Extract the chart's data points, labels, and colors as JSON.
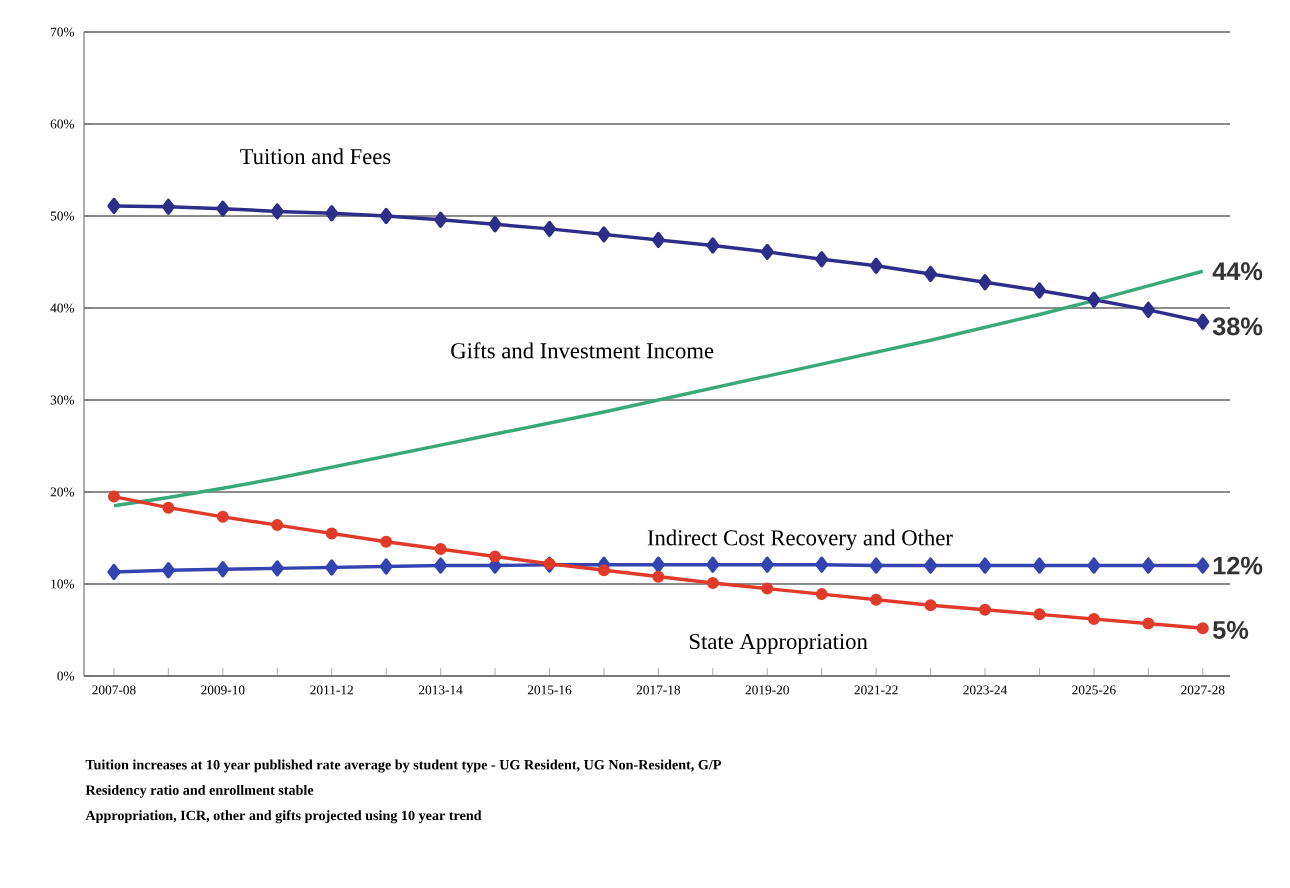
{
  "chart_data": {
    "type": "line",
    "categories": [
      "2007-08",
      null,
      "2009-10",
      null,
      "2011-12",
      null,
      "2013-14",
      null,
      "2015-16",
      null,
      "2017-18",
      null,
      "2019-20",
      null,
      "2021-22",
      null,
      "2023-24",
      null,
      "2025-26",
      null,
      "2027-28"
    ],
    "series": [
      {
        "name": "Tuition and Fees",
        "color": "#2e2e8a",
        "marker": "diamond",
        "values": [
          51.1,
          51.0,
          50.8,
          50.5,
          50.3,
          50.0,
          49.6,
          49.1,
          48.6,
          48.0,
          47.4,
          46.8,
          46.1,
          45.3,
          44.6,
          43.7,
          42.8,
          41.9,
          40.9,
          39.8,
          38.5
        ]
      },
      {
        "name": "Gifts and Investment Income",
        "color": "#3aa97a",
        "marker": "none",
        "values": [
          18.5,
          19.4,
          20.4,
          21.5,
          22.7,
          23.9,
          25.1,
          26.3,
          27.5,
          28.7,
          30.0,
          31.3,
          32.6,
          33.9,
          35.2,
          36.5,
          37.9,
          39.3,
          40.8,
          42.4,
          44.0
        ]
      },
      {
        "name": "Indirect Cost Recovery and Other",
        "color": "#3344b0",
        "marker": "diamond",
        "values": [
          11.3,
          11.5,
          11.6,
          11.7,
          11.8,
          11.9,
          12.0,
          12.0,
          12.1,
          12.1,
          12.1,
          12.1,
          12.1,
          12.1,
          12.0,
          12.0,
          12.0,
          12.0,
          12.0,
          12.0,
          12.0
        ]
      },
      {
        "name": "State Appropriation",
        "color": "#e03a2a",
        "marker": "circle",
        "values": [
          19.5,
          18.3,
          17.3,
          16.4,
          15.5,
          14.6,
          13.8,
          13.0,
          12.2,
          11.5,
          10.8,
          10.1,
          9.5,
          8.9,
          8.3,
          7.7,
          7.2,
          6.7,
          6.2,
          5.7,
          5.2
        ]
      }
    ],
    "ylim": [
      0,
      70
    ],
    "yticks": [
      {
        "value": 0,
        "label": "0%"
      },
      {
        "value": 10,
        "label": "10%"
      },
      {
        "value": 20,
        "label": "20%"
      },
      {
        "value": 30,
        "label": "30%"
      },
      {
        "value": 40,
        "label": "40%"
      },
      {
        "value": 50,
        "label": "50%"
      },
      {
        "value": 60,
        "label": "60%"
      },
      {
        "value": 70,
        "label": "70%"
      }
    ],
    "grid": "y",
    "legend": false,
    "annotations": [
      {
        "text": "44%",
        "x": "2027-28",
        "y": 44
      },
      {
        "text": "38%",
        "x": "2027-28",
        "y": 38
      },
      {
        "text": "12%",
        "x": "2027-28",
        "y": 12
      },
      {
        "text": "5%",
        "x": "2027-28",
        "y": 5
      },
      "Tuition increases at 10 year published rate average by student type - UG Resident, UG Non-Resident, G/P",
      "Residency ratio and enrollment stable",
      "Appropriation, ICR, other and gifts projected using 10 year trend"
    ]
  }
}
